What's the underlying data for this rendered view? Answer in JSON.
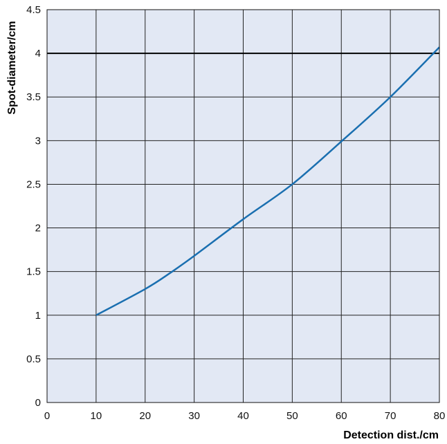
{
  "chart_data": {
    "type": "line",
    "xlabel": "Detection dist./cm",
    "ylabel": "Spot-diameter/cm",
    "xlim": [
      0,
      80
    ],
    "ylim": [
      0,
      4.5
    ],
    "x_ticks": [
      "0",
      "10",
      "20",
      "30",
      "40",
      "50",
      "60",
      "70",
      "80"
    ],
    "y_ticks": [
      "0",
      "0.5",
      "1",
      "1.5",
      "2",
      "2.5",
      "3",
      "3.5",
      "4",
      "4.5"
    ],
    "grid": true,
    "reference_line": {
      "y": 4,
      "color": "#000000"
    },
    "series": [
      {
        "x": [
          10,
          20,
          25,
          30,
          40,
          50,
          60,
          70,
          80
        ],
        "y": [
          1.0,
          1.3,
          1.48,
          1.68,
          2.1,
          2.5,
          2.99,
          3.5,
          4.07
        ],
        "color": "#1a6fb0"
      }
    ],
    "colors": {
      "plot_background": "#e2e8f4",
      "grid": "#222222"
    }
  }
}
